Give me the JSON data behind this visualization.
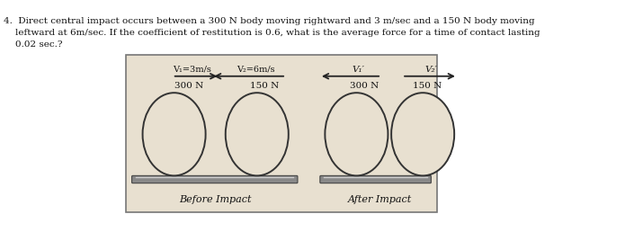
{
  "bg_color": "#e8e0d0",
  "outer_bg": "#ffffff",
  "before_label": "Before Impact",
  "after_label": "After Impact",
  "body1_label": "300 N",
  "body2_label": "150 N",
  "body3_label": "300 N",
  "body4_label": "150 N",
  "v1_label": "V₁=3m/s",
  "v2_label": "V₂=6m/s",
  "v1prime_label": "V₁′",
  "v2prime_label": "V₂′",
  "circle_face": "#e8e0d0",
  "circle_edge": "#333333",
  "arrow_color": "#222222",
  "text_color": "#111111",
  "ground_color": "#555555",
  "title_line1": "4.  Direct central impact occurs between a 300 N body moving rightward and 3 m/sec and a 150 N body moving",
  "title_line2": "    leftward at 6m/sec. If the coefficient of restitution is 0.6, what is the average force for a time of contact lasting",
  "title_line3": "    0.02 sec.?"
}
